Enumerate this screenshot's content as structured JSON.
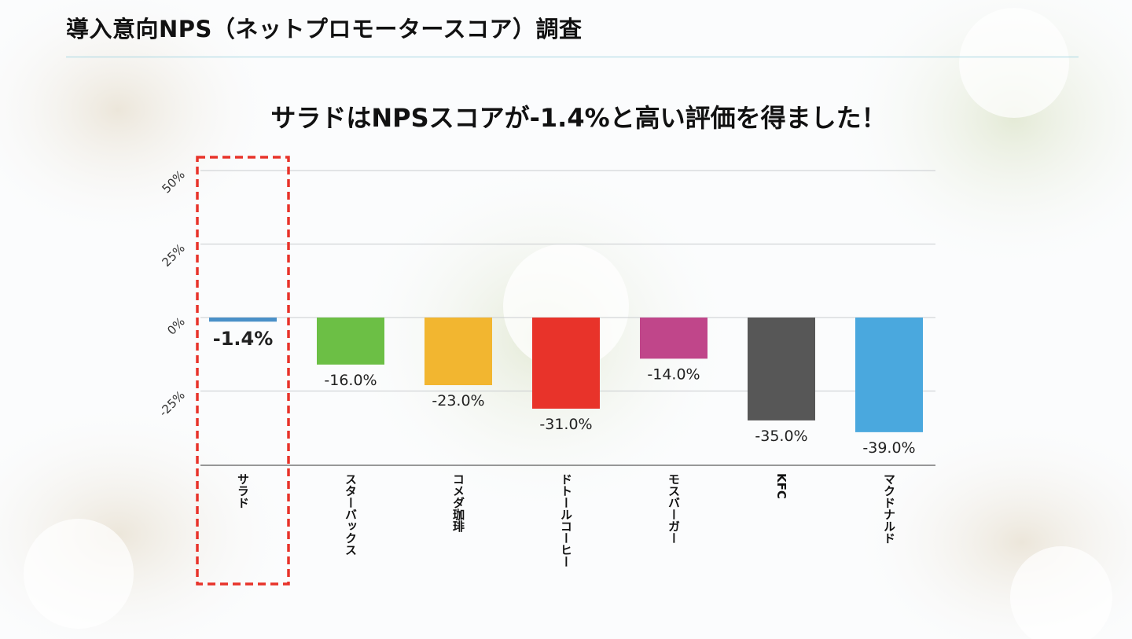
{
  "page_title": "導入意向NPS（ネットプロモータースコア）調査",
  "headline": "サラドはNPSスコアが-1.4%と高い評価を得ました！",
  "colors": {
    "title_rule": "#a9d8e3",
    "highlight_box": "#e8332a",
    "gridline": "#c9cccf",
    "baseline": "#333333"
  },
  "chart_data": {
    "type": "bar",
    "categories": [
      "サラド",
      "スターバックス",
      "コメダ珈琲",
      "ドトールコーヒー",
      "モスバーガー",
      "KFC",
      "マクドナルド"
    ],
    "values": [
      -1.4,
      -16.0,
      -23.0,
      -31.0,
      -14.0,
      -35.0,
      -39.0
    ],
    "data_labels": [
      "-1.4%",
      "-16.0%",
      "-23.0%",
      "-31.0%",
      "-14.0%",
      "-35.0%",
      "-39.0%"
    ],
    "bar_colors": [
      "#4a90c8",
      "#6cbf45",
      "#f2b630",
      "#e8332a",
      "#c0468a",
      "#575757",
      "#4aa8de"
    ],
    "ylim": [
      -50,
      50
    ],
    "yticks": [
      50,
      25,
      0,
      -25
    ],
    "ytick_labels": [
      "50%",
      "25%",
      "0%",
      "-25%"
    ],
    "grid": true,
    "highlight_category": "サラド"
  }
}
